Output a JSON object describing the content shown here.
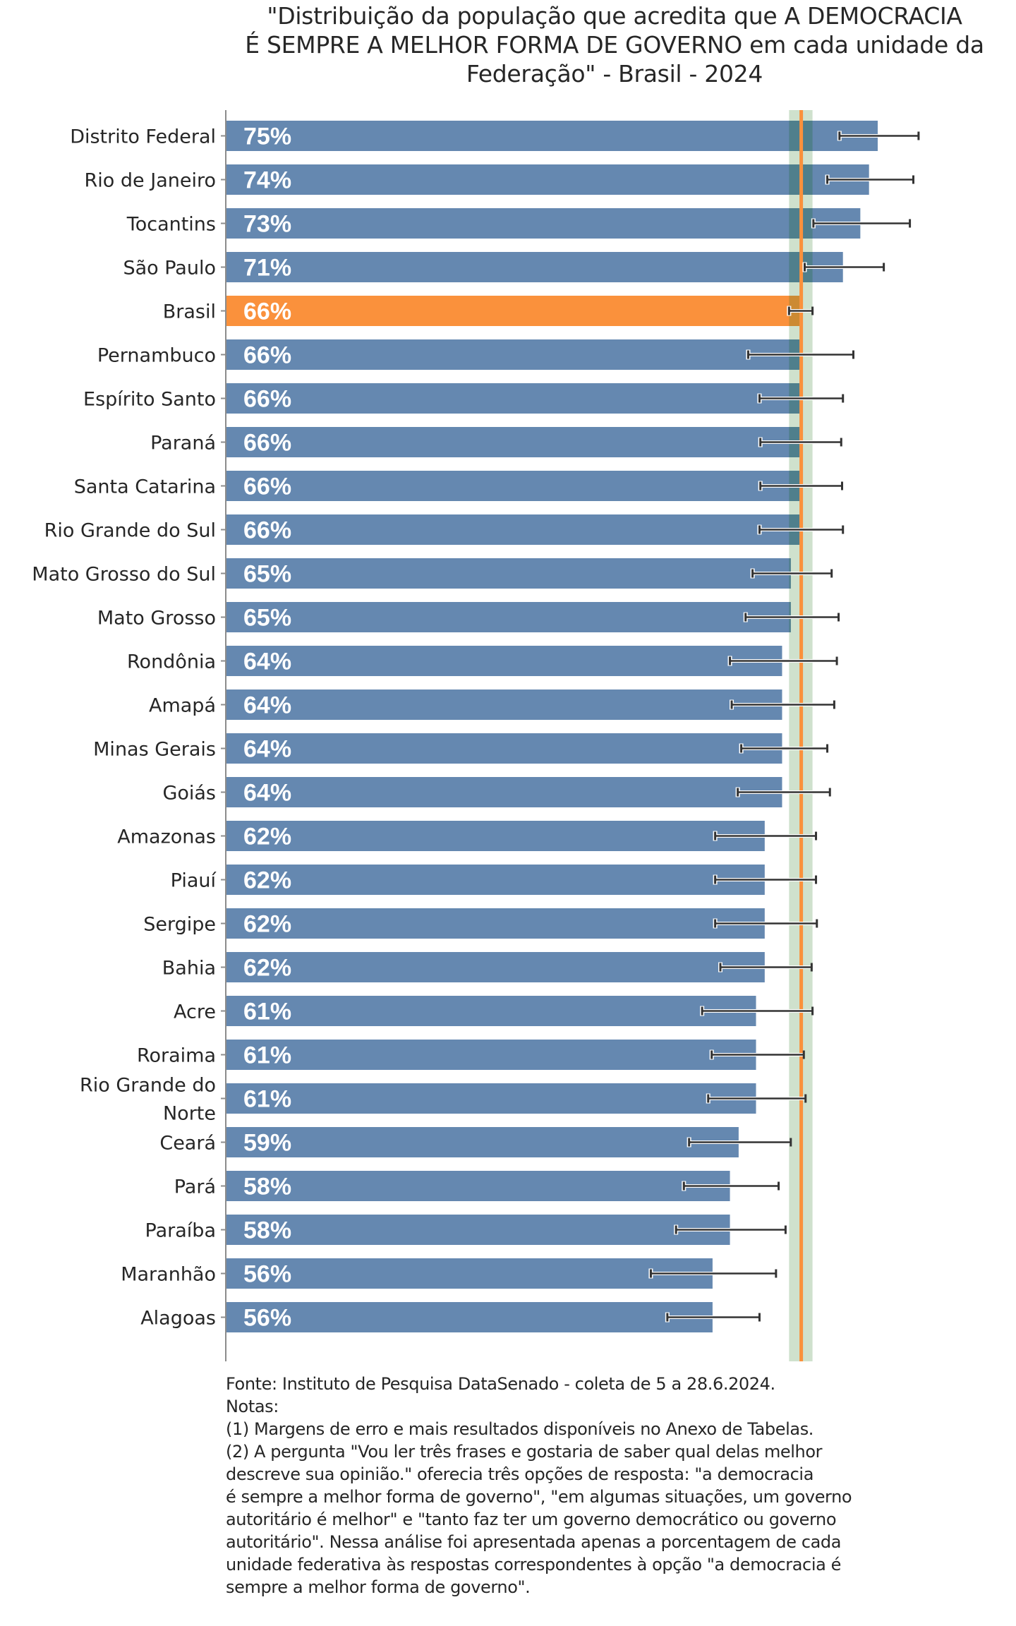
{
  "chart_data": {
    "type": "bar",
    "orientation": "horizontal",
    "title_lines": [
      "\"Distribuição da população que acredita que A DEMOCRACIA",
      "É SEMPRE A MELHOR FORMA DE GOVERNO em cada unidade da",
      "Federação\" - Brasil - 2024"
    ],
    "xlabel": "",
    "ylabel": "",
    "xlim": [
      0,
      100
    ],
    "grid": false,
    "value_suffix": "%",
    "reference": {
      "name": "Brasil",
      "value": 66.2,
      "ci_low": 64.8,
      "ci_high": 67.5
    },
    "categories": [
      "Distrito Federal",
      "Rio de Janeiro",
      "Tocantins",
      "São Paulo",
      "Brasil",
      "Pernambuco",
      "Espírito Santo",
      "Paraná",
      "Santa Catarina",
      "Rio Grande do Sul",
      "Mato Grosso do Sul",
      "Mato Grosso",
      "Rondônia",
      "Amapá",
      "Minas Gerais",
      "Goiás",
      "Amazonas",
      "Piauí",
      "Sergipe",
      "Bahia",
      "Acre",
      "Roraima",
      "Rio Grande do Norte",
      "Ceará",
      "Pará",
      "Paraíba",
      "Maranhão",
      "Alagoas"
    ],
    "category_label_lines": [
      [
        "Distrito Federal"
      ],
      [
        "Rio de Janeiro"
      ],
      [
        "Tocantins"
      ],
      [
        "São Paulo"
      ],
      [
        "Brasil"
      ],
      [
        "Pernambuco"
      ],
      [
        "Espírito Santo"
      ],
      [
        "Paraná"
      ],
      [
        "Santa Catarina"
      ],
      [
        "Rio Grande do Sul"
      ],
      [
        "Mato Grosso do Sul"
      ],
      [
        "Mato Grosso"
      ],
      [
        "Rondônia"
      ],
      [
        "Amapá"
      ],
      [
        "Minas Gerais"
      ],
      [
        "Goiás"
      ],
      [
        "Amazonas"
      ],
      [
        "Piauí"
      ],
      [
        "Sergipe"
      ],
      [
        "Bahia"
      ],
      [
        "Acre"
      ],
      [
        "Roraima"
      ],
      [
        "Rio Grande do",
        "Norte"
      ],
      [
        "Ceará"
      ],
      [
        "Pará"
      ],
      [
        "Paraíba"
      ],
      [
        "Maranhão"
      ],
      [
        "Alagoas"
      ]
    ],
    "values": [
      75,
      74,
      73,
      71,
      66,
      66,
      66,
      66,
      66,
      66,
      65,
      65,
      64,
      64,
      64,
      64,
      62,
      62,
      62,
      62,
      61,
      61,
      61,
      59,
      58,
      58,
      56,
      56
    ],
    "value_labels": [
      "75%",
      "74%",
      "73%",
      "71%",
      "66%",
      "66%",
      "66%",
      "66%",
      "66%",
      "66%",
      "65%",
      "65%",
      "64%",
      "64%",
      "64%",
      "64%",
      "62%",
      "62%",
      "62%",
      "62%",
      "61%",
      "61%",
      "61%",
      "59%",
      "58%",
      "58%",
      "56%",
      "56%"
    ],
    "error_low": [
      70.6,
      69.2,
      67.6,
      66.6,
      64.8,
      60.1,
      61.4,
      61.5,
      61.5,
      61.4,
      60.6,
      59.8,
      58.0,
      58.2,
      59.3,
      58.9,
      56.3,
      56.3,
      56.3,
      56.9,
      54.8,
      55.9,
      55.5,
      53.3,
      52.7,
      51.8,
      48.9,
      50.8
    ],
    "error_high": [
      79.7,
      79.1,
      78.7,
      75.7,
      67.5,
      72.2,
      71.0,
      70.8,
      70.9,
      71.0,
      69.7,
      70.5,
      70.3,
      70.0,
      69.2,
      69.5,
      67.9,
      67.9,
      68.0,
      67.4,
      67.5,
      66.5,
      66.7,
      65.0,
      63.6,
      64.4,
      63.3,
      61.4
    ],
    "highlight": "Brasil",
    "colors": {
      "bar": "#6588b0",
      "highlight_bar": "#fa913c",
      "reference_line": "#fa913c",
      "reference_band": "#cfe1cd",
      "band_over_bar": "#4f7f8c",
      "error_bar": "#333333",
      "axis": "#8c8c8c"
    }
  },
  "footnote": {
    "lines": [
      "Fonte: Instituto de Pesquisa DataSenado - coleta de 5 a 28.6.2024.",
      "Notas:",
      "(1) Margens de erro e mais resultados disponíveis no Anexo de Tabelas.",
      "(2) A pergunta \"Vou ler três frases e gostaria de saber qual delas melhor",
      "descreve sua opinião.\" oferecia três opções de resposta: \"a democracia",
      "é sempre a melhor forma de governo\", \"em algumas situações, um governo",
      "autoritário é melhor\" e \"tanto faz ter um governo democrático ou governo",
      "autoritário\". Nessa análise foi apresentada apenas a porcentagem de cada",
      "unidade federativa às respostas correspondentes à opção \"a democracia é",
      "sempre a melhor forma de governo\"."
    ]
  }
}
